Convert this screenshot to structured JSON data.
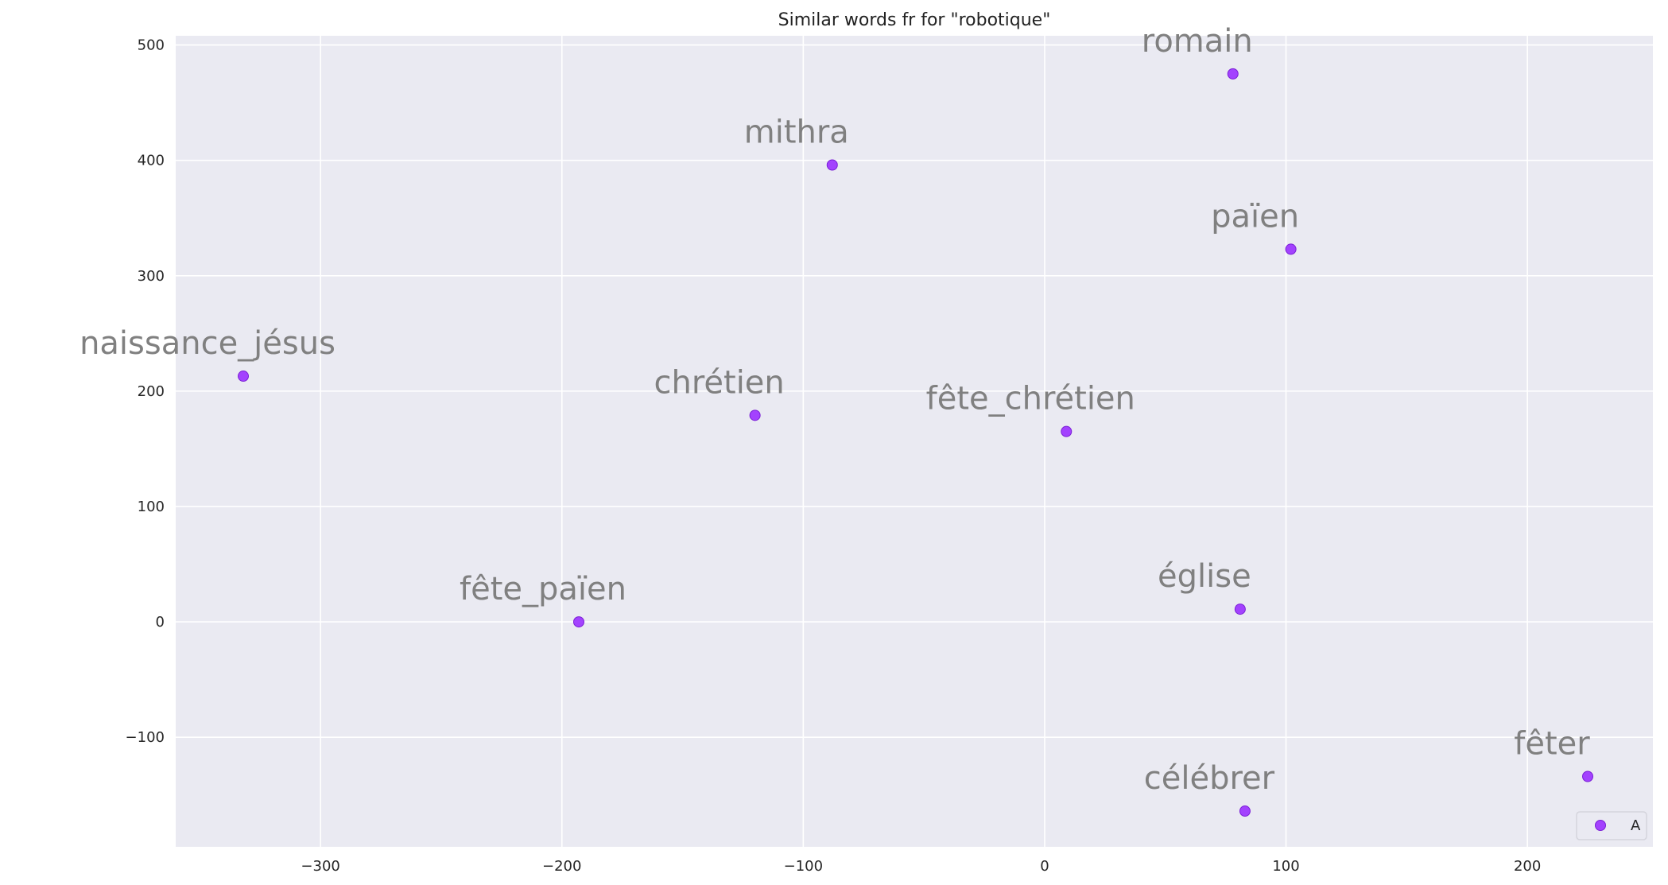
{
  "chart_data": {
    "type": "scatter",
    "title": "Similar words fr for \"robotique\"",
    "xlabel": "",
    "ylabel": "",
    "xlim": [
      -360,
      252
    ],
    "ylim": [
      -195,
      508
    ],
    "xticks": [
      -300,
      -200,
      -100,
      0,
      100,
      200
    ],
    "xtick_labels": [
      "−300",
      "−200",
      "−100",
      "0",
      "100",
      "200"
    ],
    "yticks": [
      -100,
      0,
      100,
      200,
      300,
      400,
      500
    ],
    "ytick_labels": [
      "−100",
      "0",
      "100",
      "200",
      "300",
      "400",
      "500"
    ],
    "grid": true,
    "legend": {
      "position": "lower-right",
      "entries": [
        "A"
      ]
    },
    "colors": {
      "point": "#9b30ff",
      "point_edge": "#7a1fd6",
      "plot_bg": "#eaeaf2",
      "grid": "#ffffff",
      "word": "#808080"
    },
    "series": [
      {
        "name": "A",
        "points": [
          {
            "label": "romain",
            "x": 78,
            "y": 475
          },
          {
            "label": "mithra",
            "x": -88,
            "y": 396
          },
          {
            "label": "païen",
            "x": 102,
            "y": 323
          },
          {
            "label": "naissance_jésus",
            "x": -332,
            "y": 213
          },
          {
            "label": "chrétien",
            "x": -120,
            "y": 179
          },
          {
            "label": "fête_chrétien",
            "x": 9,
            "y": 165
          },
          {
            "label": "fête_païen",
            "x": -193,
            "y": 0
          },
          {
            "label": "église",
            "x": 81,
            "y": 11
          },
          {
            "label": "fêter",
            "x": 225,
            "y": -134
          },
          {
            "label": "célébrer",
            "x": 83,
            "y": -164
          }
        ]
      }
    ]
  }
}
